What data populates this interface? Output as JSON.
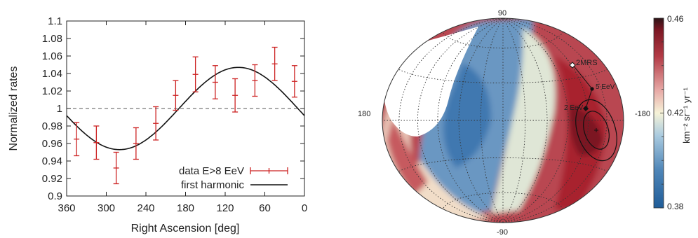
{
  "chart_data": [
    {
      "type": "scatter",
      "xlabel": "Right Ascension [deg]",
      "ylabel": "Normalized rates",
      "xlim": [
        360,
        0
      ],
      "ylim": [
        0.9,
        1.1
      ],
      "x_ticks": [
        "360",
        "300",
        "240",
        "180",
        "120",
        "60",
        "0"
      ],
      "y_ticks": [
        "0.9",
        "0.92",
        "0.94",
        "0.96",
        "0.98",
        "1",
        "1.02",
        "1.04",
        "1.06",
        "1.08",
        "1.1"
      ],
      "reference_line": 1.0,
      "grid": false,
      "legend_position": "bottom-right",
      "series": [
        {
          "name": "data E>8 EeV",
          "color": "#cc2222",
          "style": "points-with-errorbars",
          "x": [
            345,
            315,
            285,
            255,
            225,
            195,
            165,
            135,
            105,
            75,
            45,
            15
          ],
          "y": [
            0.965,
            0.961,
            0.932,
            0.96,
            0.983,
            1.015,
            1.039,
            1.03,
            1.015,
            1.032,
            1.051,
            1.031
          ],
          "err": [
            0.019,
            0.019,
            0.018,
            0.018,
            0.019,
            0.017,
            0.02,
            0.019,
            0.019,
            0.018,
            0.019,
            0.018
          ]
        },
        {
          "name": "first harmonic",
          "color": "#111111",
          "style": "line",
          "model": {
            "offset": 1.0,
            "amplitude": 0.047,
            "phase_deg": 100
          }
        }
      ]
    },
    {
      "type": "heatmap",
      "projection": "Hammer-Aitoff (equatorial)",
      "lon_labels": {
        "left": "180",
        "right": "-180"
      },
      "lat_labels": {
        "top": "90",
        "bottom": "-90"
      },
      "colorbar": {
        "min": 0.38,
        "mid": 0.42,
        "max": 0.46,
        "tick_labels": [
          "0.46",
          "0.42",
          "0.38"
        ],
        "label": "km⁻² sr⁻¹ yr⁻¹",
        "colors": [
          "#2a5f99",
          "#9ec4dc",
          "#f7f4da",
          "#d9797a",
          "#8e1d2b",
          "#2f1418"
        ]
      },
      "dipole": {
        "ra_deg": 100,
        "dec_deg": -24
      },
      "annotations": [
        {
          "label": "2MRS",
          "ra_deg": 139,
          "dec_deg": -30
        },
        {
          "label": "5 EeV",
          "ra_deg": 113,
          "dec_deg": -22
        },
        {
          "label": "2 EeV",
          "ra_deg": 126,
          "dec_deg": -3
        }
      ],
      "unexposed_region": "north of dec 45",
      "grid": true
    }
  ]
}
